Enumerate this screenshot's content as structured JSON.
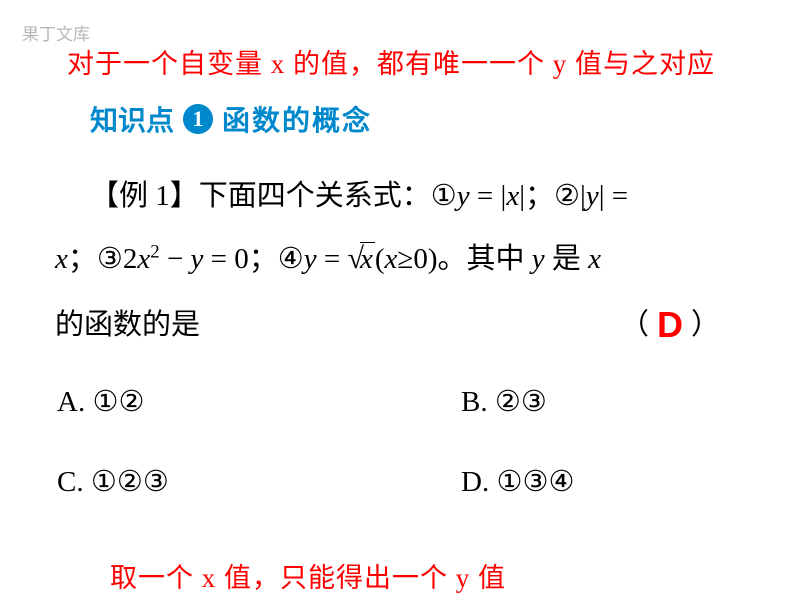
{
  "watermark": "果丁文库",
  "note_top": "对于一个自变量 x 的值，都有唯一一个 y 值与之对应",
  "header": {
    "label": "知识点",
    "number": "1",
    "title": "函数的概念"
  },
  "example": {
    "label": "【例 1】",
    "intro": "下面四个关系式：",
    "relations": {
      "r1_num": "①",
      "r1_lhs_var": "y",
      "r1_eq": " = |",
      "r1_abs_var": "x",
      "r1_close": "|；",
      "r2_num": "②",
      "r2_abs_open": "|",
      "r2_abs_var": "y",
      "r2_abs_close": "| = ",
      "r2_rhs_var": "x",
      "r2_end": "；",
      "r3_num": "③",
      "r3_coef": "2",
      "r3_var1": "x",
      "r3_exp": "2",
      "r3_minus": " − ",
      "r3_var2": "y",
      "r3_rhs": " = 0；",
      "r4_num": "④",
      "r4_lhs": "y",
      "r4_eq": " = ",
      "r4_sqrt_var": "x",
      "r4_cond_open": "(",
      "r4_cond_var": "x",
      "r4_cond": "≥0)"
    },
    "tail_text1": "。其中 ",
    "tail_var_y": "y",
    "tail_text2": " 是 ",
    "tail_var_x": "x",
    "question_line": "的函数的是",
    "paren_open": "（",
    "paren_close": "）",
    "answer": "D"
  },
  "options": {
    "A": "A. ①②",
    "B": "B. ②③",
    "C": "C. ①②③",
    "D": "D. ①③④"
  },
  "note_bottom": "取一个 x 值，只能得出一个 y 值",
  "colors": {
    "red": "#ff0000",
    "blue": "#0088cc",
    "gray": "#b8b8b8",
    "black": "#000000",
    "bg": "#ffffff"
  }
}
